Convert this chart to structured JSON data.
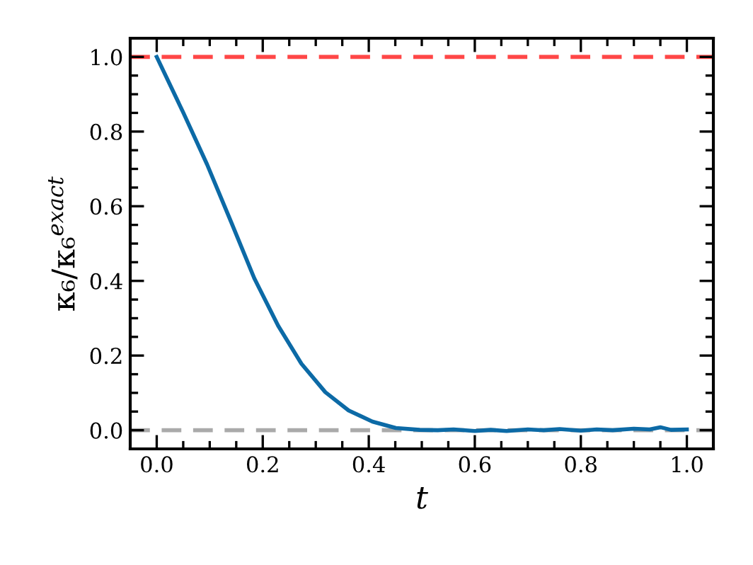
{
  "chart_data": {
    "type": "line",
    "xlabel": "t",
    "ylabel": "κ₆/κ₆$^{exact}$",
    "x": [
      0,
      0.05,
      0.095,
      0.14,
      0.184,
      0.229,
      0.273,
      0.318,
      0.362,
      0.407,
      0.451,
      0.496,
      0.53,
      0.56,
      0.6,
      0.63,
      0.66,
      0.7,
      0.73,
      0.76,
      0.8,
      0.83,
      0.86,
      0.9,
      0.93,
      0.95,
      0.97,
      1.0
    ],
    "series": [
      {
        "color": "#0c6aa6",
        "values": [
          1.0,
          0.851,
          0.712,
          0.559,
          0.407,
          0.28,
          0.178,
          0.102,
          0.053,
          0.023,
          0.006,
          0.001,
          0.0,
          0.002,
          -0.002,
          0.001,
          -0.002,
          0.002,
          0.0,
          0.003,
          -0.001,
          0.002,
          0.0,
          0.004,
          0.002,
          0.008,
          0.001,
          0.002
        ]
      }
    ],
    "xlim": [
      -0.05,
      1.05
    ],
    "ylim": [
      -0.05,
      1.05
    ],
    "xticks": [
      {
        "value": 0,
        "label": "0.0"
      },
      0.2,
      0.4,
      0.6,
      0.8,
      {
        "value": 1,
        "label": "1.0"
      }
    ],
    "yticks": [
      {
        "value": 0,
        "label": "0.0"
      },
      0.2,
      0.4,
      0.6,
      0.8,
      {
        "value": 1,
        "label": "1.0"
      }
    ],
    "ref_lines": [
      {
        "axis": "y",
        "value": 1,
        "color": "#ff4747",
        "line_style": "dashed"
      },
      {
        "axis": "y",
        "value": 0,
        "color": "#aaaaaa",
        "line_style": "dashed"
      }
    ],
    "grid": false,
    "legend": false,
    "marker": "none",
    "line_style": "solid"
  }
}
